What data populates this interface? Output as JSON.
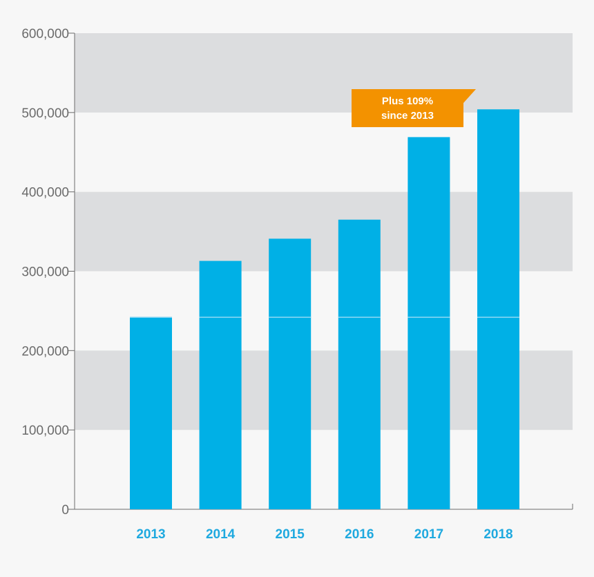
{
  "chart_data": {
    "type": "bar",
    "categories": [
      "2013",
      "2014",
      "2015",
      "2016",
      "2017",
      "2018"
    ],
    "values": [
      242000,
      313000,
      341000,
      365000,
      469000,
      504000
    ],
    "ylim": [
      0,
      600000
    ],
    "yticks": [
      0,
      100000,
      200000,
      300000,
      400000,
      500000,
      600000
    ],
    "ytick_labels": [
      "0",
      "100,000",
      "200,000",
      "300,000",
      "400,000",
      "500,000",
      "600,000"
    ],
    "baseline_marker": 242000,
    "grid": "alternating horizontal bands",
    "title": "",
    "xlabel": "",
    "ylabel": "",
    "annotation": {
      "line1": "Plus 109%",
      "line2": "since 2013",
      "target_category": "2018"
    }
  },
  "colors": {
    "bar": "#00b0e6",
    "band": "#dcdddf",
    "background": "#f7f7f7",
    "category_label": "#1fa9df",
    "tick_label": "#6b6b6b",
    "callout": "#f39200",
    "baseline_marker_line": "#8fd8f3",
    "axis": "#6b6b6b"
  }
}
